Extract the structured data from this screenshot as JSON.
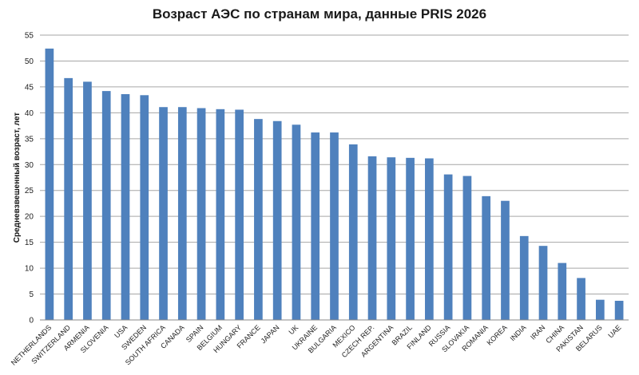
{
  "chart_data": {
    "type": "bar",
    "title": "Возраст АЭС по странам мира, данные PRIS 2026",
    "xlabel": "",
    "ylabel": "Средневзвешенный возраст, лет",
    "ylim": [
      0,
      55
    ],
    "yticks": [
      0,
      5,
      10,
      15,
      20,
      25,
      30,
      35,
      40,
      45,
      50,
      55
    ],
    "grid": true,
    "color": "#4f81bd",
    "categories": [
      "NETHERLANDS",
      "SWITZERLAND",
      "ARMENIA",
      "SLOVENIA",
      "USA",
      "SWEDEN",
      "SOUTH AFRICA",
      "CANADA",
      "SPAIN",
      "BELGIUM",
      "HUNGARY",
      "FRANCE",
      "JAPAN",
      "UK",
      "UKRAINE",
      "BULGARIA",
      "MEXICO",
      "CZECH REP.",
      "ARGENTINA",
      "BRAZIL",
      "FINLAND",
      "RUSSIA",
      "SLOVAKIA",
      "ROMANIA",
      "KOREA",
      "INDIA",
      "IRAN",
      "CHINA",
      "PAKISTAN",
      "BELARUS",
      "UAE"
    ],
    "values": [
      52.4,
      46.7,
      46.0,
      44.2,
      43.6,
      43.4,
      41.1,
      41.1,
      40.9,
      40.7,
      40.6,
      38.8,
      38.4,
      37.7,
      36.2,
      36.2,
      33.9,
      31.6,
      31.4,
      31.3,
      31.2,
      28.1,
      27.8,
      23.9,
      23.0,
      16.2,
      14.3,
      11.0,
      8.1,
      3.9,
      3.7
    ]
  }
}
